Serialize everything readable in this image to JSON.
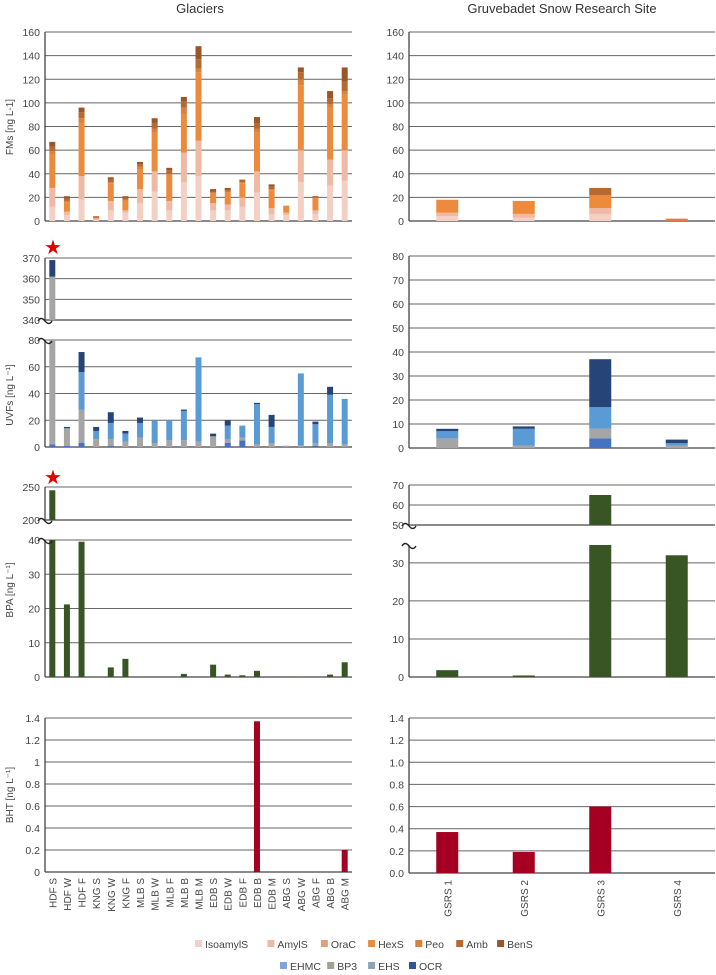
{
  "chart_data": {
    "type": "bar",
    "titles": {
      "left": "Glaciers",
      "right": "Gruvebadet Snow Research Site"
    },
    "glacier_samples": [
      "HDF S",
      "HDF W",
      "HDF F",
      "KNG S",
      "KNG W",
      "KNG F",
      "MLB S",
      "MLB W",
      "MLB F",
      "MLB B",
      "MLB M",
      "EDB S",
      "EDB W",
      "EDB F",
      "EDB B",
      "EDB M",
      "ABG S",
      "ABG W",
      "ABG F",
      "ABG B",
      "ABG M"
    ],
    "gsrs_samples": [
      "GSRS 1",
      "GSRS 2",
      "GSRS 3",
      "GSRS 4"
    ],
    "legend_row1": [
      {
        "name": "IsoamylS",
        "color": "#f4cfc4"
      },
      {
        "name": "AmylS",
        "color": "#efb9a4"
      },
      {
        "name": "OraC",
        "color": "#e0a07c"
      },
      {
        "name": "HexS",
        "color": "#ed8a3c"
      },
      {
        "name": "Peo",
        "color": "#d9813f"
      },
      {
        "name": "Amb",
        "color": "#b66a32"
      },
      {
        "name": "BenS",
        "color": "#9a5528"
      }
    ],
    "legend_row2": [
      {
        "name": "EHMC",
        "color": "#7fa6d4"
      },
      {
        "name": "BP3",
        "color": "#9aa593"
      },
      {
        "name": "EHS",
        "color": "#8ea3b4"
      },
      {
        "name": "OCR",
        "color": "#2f5597"
      }
    ],
    "fms": {
      "ylabel": "FMs [ng L-1]",
      "ticks": [
        "0",
        "20",
        "40",
        "60",
        "80",
        "100",
        "120",
        "140",
        "160"
      ],
      "ylim": [
        0,
        160
      ],
      "stack_colors": [
        "#f4cfc4",
        "#efb9a4",
        "#e0a07c",
        "#ed8a3c",
        "#d9813f",
        "#b66a32",
        "#9a5528"
      ],
      "glaciers": {
        "IsoamylS": [
          12,
          5,
          18,
          1,
          9,
          7,
          15,
          25,
          9,
          33,
          38,
          9,
          9,
          12,
          24,
          6,
          5,
          33,
          6,
          30,
          34
        ],
        "AmylS": [
          16,
          3,
          20,
          1,
          8,
          2,
          12,
          17,
          8,
          25,
          30,
          6,
          5,
          8,
          18,
          5,
          2,
          27,
          3,
          22,
          26
        ],
        "OraC": [
          0,
          0,
          0,
          0,
          0,
          0,
          0,
          0,
          0,
          0,
          0,
          0,
          0,
          0,
          0,
          0,
          0,
          0,
          0,
          0,
          0
        ],
        "HexS": [
          28,
          8,
          45,
          1,
          15,
          8,
          17,
          33,
          22,
          33,
          58,
          8,
          10,
          12,
          33,
          15,
          6,
          55,
          11,
          44,
          47
        ],
        "Peo": [
          3,
          1,
          4,
          0,
          1,
          1,
          2,
          3,
          1,
          5,
          3,
          1,
          1,
          1,
          3,
          1,
          0,
          5,
          0,
          3,
          3
        ],
        "Amb": [
          4,
          2,
          5,
          0,
          2,
          2,
          2,
          5,
          3,
          5,
          8,
          1,
          1,
          1,
          5,
          2,
          0,
          6,
          0,
          5,
          8
        ],
        "BenS": [
          4,
          2,
          4,
          1,
          2,
          1,
          2,
          4,
          2,
          4,
          11,
          2,
          2,
          1,
          5,
          2,
          0,
          4,
          1,
          6,
          12
        ]
      },
      "gsrs": {
        "IsoamylS": [
          4,
          3,
          6,
          0
        ],
        "AmylS": [
          3,
          3,
          5,
          0
        ],
        "OraC": [
          0,
          0,
          0,
          0
        ],
        "HexS": [
          11,
          11,
          11,
          0
        ],
        "Peo": [
          0,
          0,
          0,
          2
        ],
        "Amb": [
          0,
          0,
          6,
          0
        ],
        "BenS": [
          0,
          0,
          0,
          0
        ]
      }
    },
    "uvfs": {
      "ylabel": "UVFs [ng L⁻¹]",
      "ticks_upper": [
        "340",
        "350",
        "360",
        "370"
      ],
      "ylim_upper": [
        340,
        370
      ],
      "ticks_lower": [
        "0",
        "20",
        "40",
        "60",
        "80"
      ],
      "ylim_lower": [
        0,
        80
      ],
      "ticks_right": [
        "0",
        "10",
        "20",
        "30",
        "40",
        "50",
        "60",
        "70",
        "80"
      ],
      "ylim_right": [
        0,
        80
      ],
      "stack_colors": [
        "#4472c4",
        "#a5a5a5",
        "#5b9bd5",
        "#264478"
      ],
      "glaciers": {
        "s1": [
          2,
          1,
          3,
          0,
          1,
          0,
          0,
          0,
          0,
          0,
          0,
          0,
          3,
          5,
          0,
          0,
          0,
          0,
          1,
          0,
          0
        ],
        "s2": [
          359,
          13,
          25,
          6,
          5,
          4,
          7,
          3,
          5,
          5,
          4,
          8,
          3,
          2,
          2,
          3,
          1,
          1,
          2,
          3,
          2
        ],
        "s3": [
          0,
          0,
          28,
          6,
          12,
          6,
          11,
          17,
          15,
          22,
          63,
          0,
          10,
          9,
          30,
          12,
          0,
          54,
          14,
          36,
          34
        ],
        "s4": [
          8,
          1,
          15,
          3,
          8,
          2,
          4,
          0,
          0,
          1,
          0,
          2,
          4,
          0,
          1,
          9,
          0,
          0,
          2,
          6,
          0
        ]
      },
      "gsrs": {
        "s1": [
          0,
          0,
          4,
          0
        ],
        "s2": [
          4,
          1,
          4,
          1
        ],
        "s3": [
          3,
          7,
          9,
          1
        ],
        "s4": [
          1,
          1,
          20,
          1.5
        ]
      },
      "marker": "★"
    },
    "bpa": {
      "ylabel": "BPA [ng L⁻¹]",
      "ticks_upper": [
        "200",
        "250"
      ],
      "ylim_upper": [
        200,
        250
      ],
      "ticks_lower": [
        "0",
        "10",
        "20",
        "30",
        "40"
      ],
      "ylim_lower": [
        0,
        40
      ],
      "ticks_right_upper": [
        "50",
        "60",
        "70"
      ],
      "ylim_right_upper": [
        50,
        70
      ],
      "ticks_right_lower": [
        "0",
        "10",
        "20",
        "30"
      ],
      "ylim_right_lower": [
        0,
        34.7
      ],
      "color": "#375623",
      "glaciers": [
        245,
        21.2,
        39.5,
        0,
        2.8,
        5.3,
        0,
        0,
        0,
        0.9,
        0,
        3.6,
        0.7,
        0.5,
        1.8,
        0,
        0,
        0.1,
        0,
        0.7,
        4.3
      ],
      "gsrs": [
        1.8,
        0.4,
        65,
        32
      ],
      "marker": "★"
    },
    "bht": {
      "ylabel": "BHT [ng L⁻¹]",
      "ticks_left": [
        "0",
        "0.2",
        "0.4",
        "0.6",
        "0.8",
        "1",
        "1.2",
        "1.4"
      ],
      "ticks_right": [
        "0.0",
        "0.2",
        "0.4",
        "0.6",
        "0.8",
        "1.0",
        "1.2",
        "1.4"
      ],
      "ylim": [
        0,
        1.4
      ],
      "color": "#a50021",
      "glaciers": [
        0,
        0,
        0,
        0,
        0,
        0,
        0,
        0,
        0,
        0,
        0,
        0,
        0,
        0,
        1.37,
        0,
        0,
        0,
        0,
        0,
        0.2
      ],
      "gsrs": [
        0.37,
        0.19,
        0.6,
        0
      ]
    }
  }
}
